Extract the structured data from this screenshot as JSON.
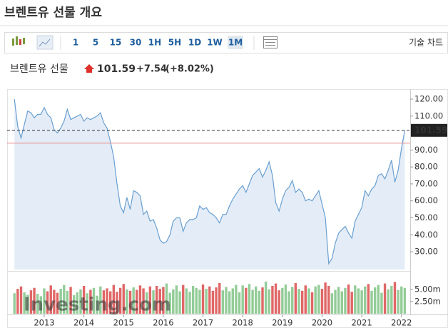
{
  "header": {
    "title": "브렌트유 선물 개요"
  },
  "toolbar": {
    "intervals": [
      "1",
      "5",
      "15",
      "30",
      "1H",
      "5H",
      "1D",
      "1W",
      "1M"
    ],
    "active_index": 8,
    "technical_chart": "기술 차트"
  },
  "quote": {
    "name": "브렌트유 선물",
    "price": "101.59",
    "change": "+7.54",
    "change_percent": "(+8.02%)"
  },
  "watermark": "Investing.com",
  "chart_data": [
    {
      "type": "area",
      "color": "#6a9fd0",
      "fill": "#e4edf7",
      "x": [
        2012.25,
        2012.333,
        2012.417,
        2012.5,
        2012.583,
        2012.667,
        2012.75,
        2012.833,
        2012.917,
        2013.0,
        2013.083,
        2013.167,
        2013.25,
        2013.333,
        2013.417,
        2013.5,
        2013.583,
        2013.667,
        2013.75,
        2013.833,
        2013.917,
        2014.0,
        2014.083,
        2014.167,
        2014.25,
        2014.333,
        2014.417,
        2014.5,
        2014.583,
        2014.667,
        2014.75,
        2014.833,
        2014.917,
        2015.0,
        2015.083,
        2015.167,
        2015.25,
        2015.333,
        2015.417,
        2015.5,
        2015.583,
        2015.667,
        2015.75,
        2015.833,
        2015.917,
        2016.0,
        2016.083,
        2016.167,
        2016.25,
        2016.333,
        2016.417,
        2016.5,
        2016.583,
        2016.667,
        2016.75,
        2016.833,
        2016.917,
        2017.0,
        2017.083,
        2017.167,
        2017.25,
        2017.333,
        2017.417,
        2017.5,
        2017.583,
        2017.667,
        2017.75,
        2017.833,
        2017.917,
        2018.0,
        2018.083,
        2018.167,
        2018.25,
        2018.333,
        2018.417,
        2018.5,
        2018.583,
        2018.667,
        2018.75,
        2018.833,
        2018.917,
        2019.0,
        2019.083,
        2019.167,
        2019.25,
        2019.333,
        2019.417,
        2019.5,
        2019.583,
        2019.667,
        2019.75,
        2019.833,
        2019.917,
        2020.0,
        2020.083,
        2020.167,
        2020.25,
        2020.333,
        2020.417,
        2020.5,
        2020.583,
        2020.667,
        2020.75,
        2020.833,
        2020.917,
        2021.0,
        2021.083,
        2021.167,
        2021.25,
        2021.333,
        2021.417,
        2021.5,
        2021.583,
        2021.667,
        2021.75,
        2021.833,
        2021.917,
        2022.0,
        2022.083
      ],
      "values": [
        120,
        104,
        97,
        105,
        113,
        112,
        109,
        111,
        111,
        115,
        111,
        109,
        102,
        100,
        103,
        107,
        114,
        108,
        109,
        110,
        111,
        107,
        109,
        108,
        109,
        110,
        112,
        106,
        103,
        95,
        86,
        70,
        57,
        53,
        62,
        55,
        66,
        65,
        63,
        52,
        54,
        48,
        49,
        44,
        37,
        35,
        36,
        40,
        48,
        50,
        50,
        42,
        47,
        49,
        49,
        50,
        57,
        55,
        56,
        53,
        52,
        50,
        47,
        52,
        52,
        57,
        61,
        64,
        67,
        69,
        65,
        70,
        75,
        77,
        79,
        74,
        78,
        83,
        75,
        59,
        54,
        61,
        66,
        68,
        72,
        65,
        67,
        65,
        60,
        61,
        60,
        63,
        66,
        58,
        50,
        23,
        26,
        35,
        41,
        43,
        45,
        41,
        38,
        48,
        52,
        56,
        66,
        63,
        67,
        69,
        75,
        76,
        73,
        78,
        84,
        71,
        78,
        91,
        101.59
      ],
      "reference_line": 94.05,
      "reference_color": "#e88a8a",
      "xlim": [
        2012.21,
        2022.13
      ],
      "xticks": [
        2013,
        2014,
        2015,
        2016,
        2017,
        2018,
        2019,
        2020,
        2021,
        2022
      ],
      "ylim": [
        19.5,
        125.9
      ],
      "yticks": [
        {
          "value": 30,
          "label": "30.00"
        },
        {
          "value": 40,
          "label": "40.00"
        },
        {
          "value": 50,
          "label": "50.00"
        },
        {
          "value": 60,
          "label": "60.00"
        },
        {
          "value": 70,
          "label": "70.00"
        },
        {
          "value": 80,
          "label": "80.00"
        },
        {
          "value": 90,
          "label": "90.00"
        },
        {
          "value": 100,
          "label": "100.00"
        },
        {
          "value": 110,
          "label": "110.00"
        },
        {
          "value": 120,
          "label": "120.00"
        }
      ]
    },
    {
      "type": "bar",
      "up_color": "#93cc98",
      "down_color": "#e06767",
      "values": [
        4.2,
        5.1,
        5.6,
        4.4,
        3.9,
        4.8,
        5.3,
        4.1,
        3.6,
        5.2,
        4.6,
        5.8,
        4.9,
        4.3,
        5.1,
        5.9,
        4.7,
        5.5,
        3.8,
        4.4,
        5.0,
        5.7,
        4.2,
        4.9,
        5.3,
        3.7,
        5.6,
        4.8,
        5.2,
        4.6,
        5.9,
        4.5,
        5.3,
        6.1,
        5.0,
        4.7,
        5.4,
        4.9,
        5.8,
        5.2,
        4.4,
        5.6,
        4.8,
        5.7,
        5.1,
        5.5,
        6.2,
        4.3,
        5.0,
        5.8,
        4.6,
        5.9,
        5.2,
        4.5,
        5.7,
        5.3,
        4.9,
        6.0,
        5.1,
        5.6,
        4.7,
        5.4,
        6.3,
        4.8,
        5.5,
        4.6,
        5.2,
        5.9,
        4.4,
        5.8,
        5.3,
        6.1,
        4.9,
        5.6,
        4.7,
        5.4,
        6.6,
        5.0,
        5.7,
        6.2,
        4.8,
        5.3,
        6.0,
        4.6,
        5.5,
        6.3,
        5.1,
        4.7,
        5.8,
        5.2,
        4.4,
        5.6,
        5.9,
        5.1,
        6.4,
        5.7,
        4.2,
        4.9,
        5.5,
        4.6,
        5.3,
        6.0,
        4.5,
        5.8,
        5.2,
        4.8,
        5.6,
        6.1,
        4.7,
        5.4,
        5.9,
        4.3,
        6.2,
        5.0,
        5.7,
        6.5,
        4.9,
        5.6,
        5.3
      ],
      "ylim": [
        0,
        7.6
      ],
      "yticks": [
        {
          "value": 2.5,
          "label": "2.50m"
        },
        {
          "value": 5,
          "label": "5.00m"
        }
      ]
    }
  ]
}
